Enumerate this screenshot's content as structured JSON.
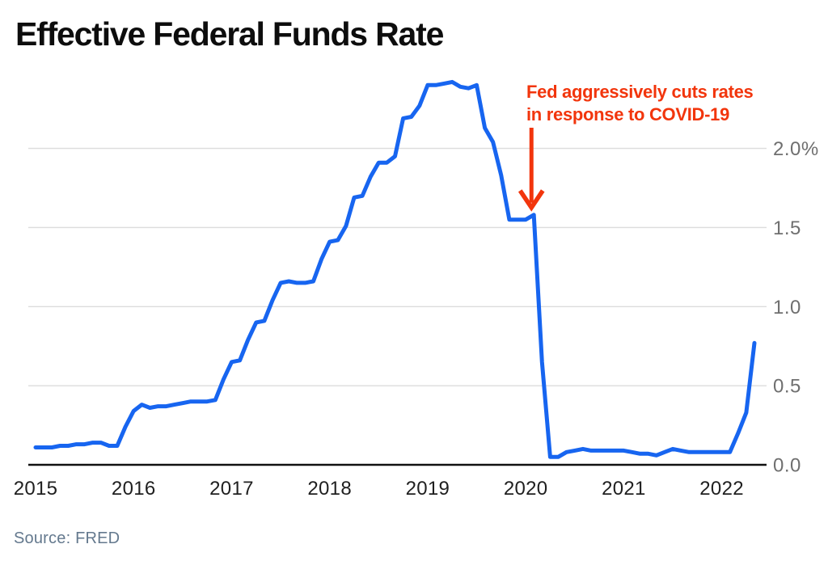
{
  "title": "Effective Federal Funds Rate",
  "source": "Source: FRED",
  "annotation": {
    "line1": "Fed aggressively cuts rates",
    "line2": "in response to COVID-19",
    "target_month": "2020-02",
    "target_value": 1.58
  },
  "colors": {
    "line": "#1765f0",
    "annotation": "#f2350c",
    "grid": "#dcdcdc",
    "axis": "#111111",
    "ytick": "#6f6f6f",
    "xtick": "#1f1f1f",
    "title": "#0d0d0d",
    "source": "#64798e",
    "background": "#ffffff"
  },
  "chart_data": {
    "type": "line",
    "title": "Effective Federal Funds Rate",
    "xlabel": "",
    "ylabel": "percent",
    "ylim": [
      0,
      2.5
    ],
    "grid": "horizontal",
    "legend": "none",
    "frequency": "monthly",
    "x_start": "2015-01",
    "x_end": "2022-05",
    "yticks": [
      {
        "value": 0.0,
        "label": "0.0"
      },
      {
        "value": 0.5,
        "label": "0.5"
      },
      {
        "value": 1.0,
        "label": "1.0"
      },
      {
        "value": 1.5,
        "label": "1.5"
      },
      {
        "value": 2.0,
        "label": "2.0%"
      }
    ],
    "xticks": [
      {
        "value": "2015-01",
        "label": "2015"
      },
      {
        "value": "2016-01",
        "label": "2016"
      },
      {
        "value": "2017-01",
        "label": "2017"
      },
      {
        "value": "2018-01",
        "label": "2018"
      },
      {
        "value": "2019-01",
        "label": "2019"
      },
      {
        "value": "2020-01",
        "label": "2020"
      },
      {
        "value": "2021-01",
        "label": "2021"
      },
      {
        "value": "2022-01",
        "label": "2022"
      }
    ],
    "months": [
      "2015-01",
      "2015-02",
      "2015-03",
      "2015-04",
      "2015-05",
      "2015-06",
      "2015-07",
      "2015-08",
      "2015-09",
      "2015-10",
      "2015-11",
      "2015-12",
      "2016-01",
      "2016-02",
      "2016-03",
      "2016-04",
      "2016-05",
      "2016-06",
      "2016-07",
      "2016-08",
      "2016-09",
      "2016-10",
      "2016-11",
      "2016-12",
      "2017-01",
      "2017-02",
      "2017-03",
      "2017-04",
      "2017-05",
      "2017-06",
      "2017-07",
      "2017-08",
      "2017-09",
      "2017-10",
      "2017-11",
      "2017-12",
      "2018-01",
      "2018-02",
      "2018-03",
      "2018-04",
      "2018-05",
      "2018-06",
      "2018-07",
      "2018-08",
      "2018-09",
      "2018-10",
      "2018-11",
      "2018-12",
      "2019-01",
      "2019-02",
      "2019-03",
      "2019-04",
      "2019-05",
      "2019-06",
      "2019-07",
      "2019-08",
      "2019-09",
      "2019-10",
      "2019-11",
      "2019-12",
      "2020-01",
      "2020-02",
      "2020-03",
      "2020-04",
      "2020-05",
      "2020-06",
      "2020-07",
      "2020-08",
      "2020-09",
      "2020-10",
      "2020-11",
      "2020-12",
      "2021-01",
      "2021-02",
      "2021-03",
      "2021-04",
      "2021-05",
      "2021-06",
      "2021-07",
      "2021-08",
      "2021-09",
      "2021-10",
      "2021-11",
      "2021-12",
      "2022-01",
      "2022-02",
      "2022-03",
      "2022-04",
      "2022-05"
    ],
    "values": [
      0.11,
      0.11,
      0.11,
      0.12,
      0.12,
      0.13,
      0.13,
      0.14,
      0.14,
      0.12,
      0.12,
      0.24,
      0.34,
      0.38,
      0.36,
      0.37,
      0.37,
      0.38,
      0.39,
      0.4,
      0.4,
      0.4,
      0.41,
      0.54,
      0.65,
      0.66,
      0.79,
      0.9,
      0.91,
      1.04,
      1.15,
      1.16,
      1.15,
      1.15,
      1.16,
      1.3,
      1.41,
      1.42,
      1.51,
      1.69,
      1.7,
      1.82,
      1.91,
      1.91,
      1.95,
      2.19,
      2.2,
      2.27,
      2.4,
      2.4,
      2.41,
      2.42,
      2.39,
      2.38,
      2.4,
      2.13,
      2.04,
      1.83,
      1.55,
      1.55,
      1.55,
      1.58,
      0.65,
      0.05,
      0.05,
      0.08,
      0.09,
      0.1,
      0.09,
      0.09,
      0.09,
      0.09,
      0.09,
      0.08,
      0.07,
      0.07,
      0.06,
      0.08,
      0.1,
      0.09,
      0.08,
      0.08,
      0.08,
      0.08,
      0.08,
      0.08,
      0.2,
      0.33,
      0.77
    ]
  }
}
